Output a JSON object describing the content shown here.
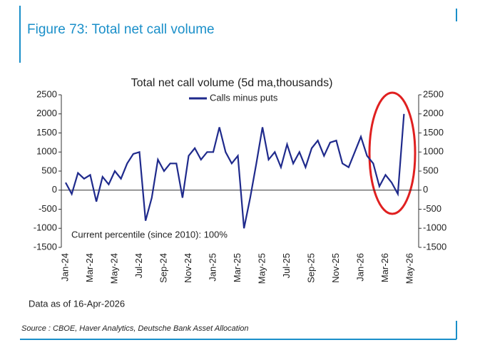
{
  "figure_title": "Figure 73: Total net call volume",
  "chart_data": {
    "type": "line",
    "title": "Total net call volume (5d ma,thousands)",
    "categories": [
      "Jan-24",
      null,
      null,
      null,
      "Mar-24",
      null,
      null,
      null,
      "May-24",
      null,
      null,
      null,
      "Jul-24",
      null,
      null,
      null,
      "Sep-24",
      null,
      null,
      null,
      "Nov-24",
      null,
      null,
      null,
      "Jan-25",
      null,
      null,
      null,
      "Mar-25",
      null,
      null,
      null,
      "May-25",
      null,
      null,
      null,
      "Jul-25",
      null,
      null,
      null,
      "Sep-25",
      null,
      null,
      null,
      "Nov-25",
      null,
      null,
      null,
      "Jan-26",
      null,
      null,
      null,
      "Mar-26",
      null,
      null,
      null,
      "May-26"
    ],
    "series": [
      {
        "name": "Calls minus puts",
        "color": "#1f2a8c",
        "values": [
          200,
          -100,
          450,
          300,
          400,
          -300,
          350,
          150,
          500,
          300,
          700,
          950,
          1000,
          -800,
          -200,
          800,
          500,
          700,
          700,
          -200,
          900,
          1100,
          800,
          1000,
          1000,
          1650,
          1000,
          700,
          900,
          -1000,
          -200,
          700,
          1650,
          800,
          1000,
          600,
          1200,
          700,
          1000,
          600,
          1100,
          1300,
          900,
          1250,
          1300,
          700,
          600,
          1000,
          1400,
          900,
          700,
          100,
          400,
          200,
          -100,
          2000,
          null
        ]
      }
    ],
    "ylim": [
      -1500,
      2500
    ],
    "yticks": [
      -1500,
      -1000,
      -500,
      0,
      500,
      1000,
      1500,
      2000,
      2500
    ],
    "y2lim": [
      -1500,
      2500
    ],
    "y2ticks": [
      -1500,
      -1000,
      -500,
      0,
      500,
      1000,
      1500,
      2000,
      2500
    ],
    "annotation": "Current percentile (since 2010): 100%",
    "note": "Data as of 16-Apr-2026",
    "legend": "top"
  },
  "source": "Source : CBOE, Haver Analytics, Deutsche Bank Asset Allocation"
}
